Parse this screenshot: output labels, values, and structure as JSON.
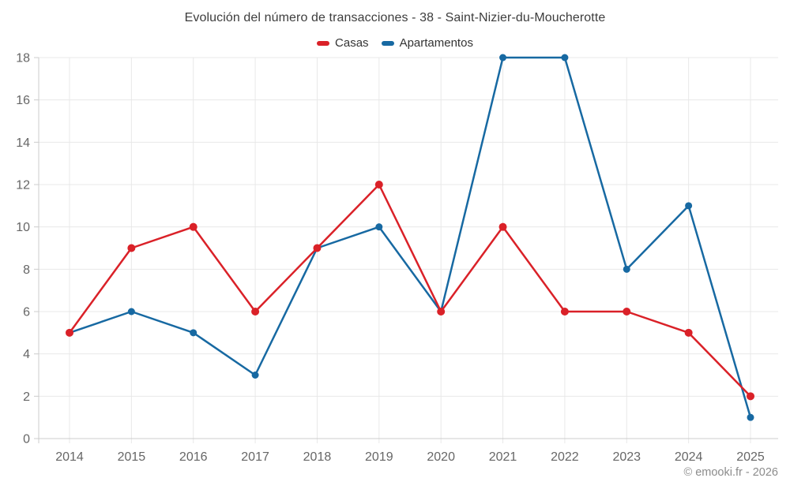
{
  "title": "Evolución del número de transacciones - 38 - Saint-Nizier-du-Moucherotte",
  "footer": "© emooki.fr - 2026",
  "colors": {
    "casas": "#da2128",
    "apartamentos": "#1769a2",
    "grid": "#e8e8e8",
    "axis": "#cccccc",
    "tick_label": "#666666"
  },
  "legend": {
    "items": [
      {
        "label": "Casas",
        "color": "#da2128"
      },
      {
        "label": "Apartamentos",
        "color": "#1769a2"
      }
    ]
  },
  "chart_data": {
    "type": "line",
    "title": "Evolución del número de transacciones - 38 - Saint-Nizier-du-Moucherotte",
    "categories": [
      "2014",
      "2015",
      "2016",
      "2017",
      "2018",
      "2019",
      "2020",
      "2021",
      "2022",
      "2023",
      "2024",
      "2025"
    ],
    "series": [
      {
        "name": "Casas",
        "color": "#da2128",
        "values": [
          5,
          9,
          10,
          6,
          9,
          12,
          6,
          10,
          6,
          6,
          5,
          2
        ]
      },
      {
        "name": "Apartamentos",
        "color": "#1769a2",
        "values": [
          5,
          6,
          5,
          3,
          9,
          10,
          6,
          18,
          18,
          8,
          11,
          1
        ]
      }
    ],
    "xlabel": "",
    "ylabel": "",
    "ylim": [
      0,
      18
    ],
    "y_ticks": [
      0,
      2,
      4,
      6,
      8,
      10,
      12,
      14,
      16,
      18
    ],
    "grid": true,
    "legend_position": "top"
  }
}
